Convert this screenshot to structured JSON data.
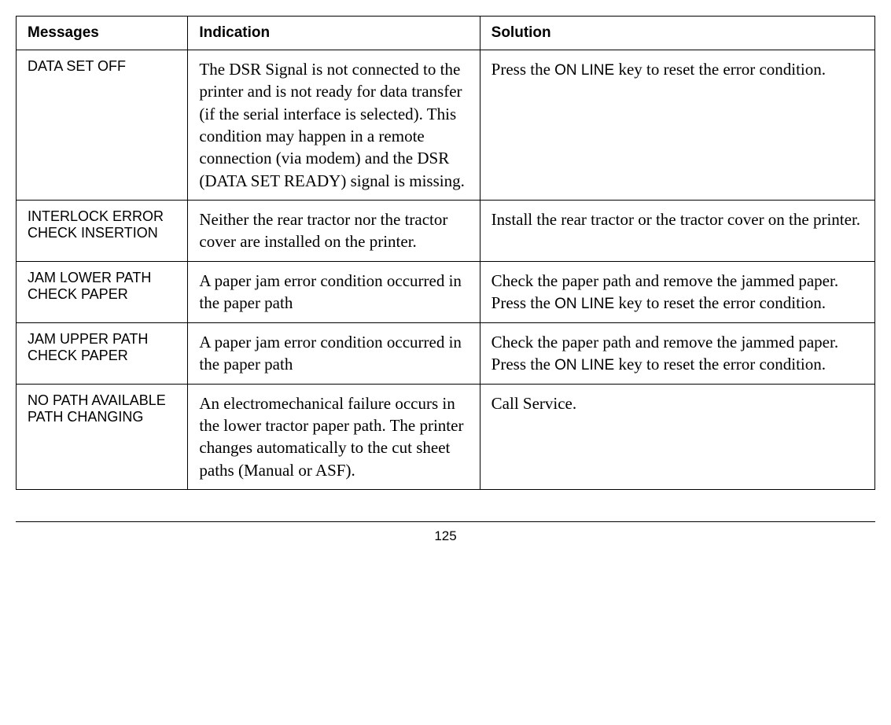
{
  "table": {
    "columns": [
      "Messages",
      "Indication",
      "Solution"
    ],
    "col_widths_pct": [
      20,
      34,
      46
    ],
    "header_font": "Arial, Helvetica, sans-serif",
    "header_fontsize": 19,
    "header_fontweight": "bold",
    "msg_font": "Arial, Helvetica, sans-serif",
    "msg_fontsize": 18,
    "body_font": "Georgia, 'Times New Roman', serif",
    "body_fontsize": 21,
    "border_color": "#000000",
    "background_color": "#ffffff",
    "rows": [
      {
        "message": "DATA SET OFF",
        "indication": "The DSR Signal is not connected to the printer and is not ready for data transfer (if the serial interface is selected). This condition may happen in a remote connection (via modem) and the DSR (DATA SET READY) signal is missing.",
        "solution_pre": "Press the ",
        "solution_key": "ON LINE",
        "solution_post": " key to reset the error condition."
      },
      {
        "message": "INTERLOCK ERROR CHECK INSERTION",
        "indication": "Neither the rear tractor nor the tractor cover are installed on the printer.",
        "solution_pre": "Install the rear tractor or the tractor cover on the printer.",
        "solution_key": "",
        "solution_post": ""
      },
      {
        "message": "JAM LOWER PATH CHECK PAPER",
        "indication": "A paper jam error condition occurred in the paper path",
        "solution_pre": "Check the paper path and remove the jammed paper. Press the ",
        "solution_key": "ON LINE",
        "solution_post": " key to reset the error condition."
      },
      {
        "message": "JAM UPPER PATH CHECK PAPER",
        "indication": "A paper jam error condition occurred in the paper path",
        "solution_pre": "Check the paper path and remove the jammed paper. Press the ",
        "solution_key": "ON LINE",
        "solution_post": " key to reset the error condition."
      },
      {
        "message": "NO PATH AVAILABLE PATH CHANGING",
        "indication": "An electromechanical failure occurs in the lower tractor paper path. The printer changes automatically to the cut sheet paths (Manual or ASF).",
        "solution_pre": "Call Service.",
        "solution_key": "",
        "solution_post": ""
      }
    ]
  },
  "page_number": "125"
}
